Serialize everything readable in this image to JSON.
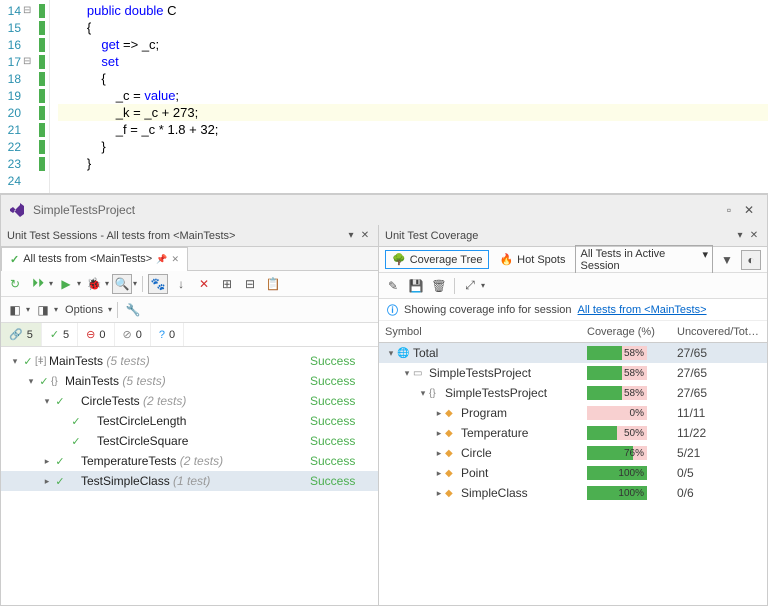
{
  "editor": {
    "lines": [
      {
        "num": 14,
        "fold": "⊟",
        "mark": true,
        "tokens": [
          {
            "t": "        ",
            "c": ""
          },
          {
            "t": "public",
            "c": "kw"
          },
          {
            "t": " ",
            "c": ""
          },
          {
            "t": "double",
            "c": "kw"
          },
          {
            "t": " C",
            "c": "txt"
          }
        ]
      },
      {
        "num": 15,
        "fold": "",
        "mark": true,
        "tokens": [
          {
            "t": "        {",
            "c": "txt"
          }
        ]
      },
      {
        "num": 16,
        "fold": "",
        "mark": true,
        "tokens": [
          {
            "t": "            ",
            "c": ""
          },
          {
            "t": "get",
            "c": "kw"
          },
          {
            "t": " => _c;",
            "c": "txt"
          }
        ]
      },
      {
        "num": 17,
        "fold": "⊟",
        "mark": true,
        "tokens": [
          {
            "t": "            ",
            "c": ""
          },
          {
            "t": "set",
            "c": "kw"
          }
        ]
      },
      {
        "num": 18,
        "fold": "",
        "mark": true,
        "tokens": [
          {
            "t": "            {",
            "c": "txt"
          }
        ]
      },
      {
        "num": 19,
        "fold": "",
        "mark": true,
        "tokens": [
          {
            "t": "                _c = ",
            "c": "txt"
          },
          {
            "t": "value",
            "c": "kw"
          },
          {
            "t": ";",
            "c": "txt"
          }
        ]
      },
      {
        "num": 20,
        "fold": "",
        "mark": true,
        "hl": true,
        "tokens": [
          {
            "t": "                _k = _c + 273;",
            "c": "txt"
          }
        ]
      },
      {
        "num": 21,
        "fold": "",
        "mark": true,
        "tokens": [
          {
            "t": "                _f = _c * 1.8 + 32;",
            "c": "txt"
          }
        ]
      },
      {
        "num": 22,
        "fold": "",
        "mark": true,
        "tokens": [
          {
            "t": "            }",
            "c": "txt"
          }
        ]
      },
      {
        "num": 23,
        "fold": "",
        "mark": true,
        "tokens": [
          {
            "t": "        }",
            "c": "txt"
          }
        ]
      },
      {
        "num": 24,
        "fold": "",
        "mark": false,
        "tokens": [
          {
            "t": "",
            "c": ""
          }
        ]
      }
    ]
  },
  "window": {
    "title": "SimpleTestsProject"
  },
  "leftPanel": {
    "header": "Unit Test Sessions - All tests from <MainTests>",
    "tab": "All tests from <MainTests>",
    "options": "Options",
    "stats": {
      "total": "5",
      "passed": "5",
      "failed": "0",
      "ignored": "0",
      "unknown": "0"
    },
    "tree": [
      {
        "depth": 0,
        "exp": "▾",
        "ic": "✓",
        "kind": "[ǂ]",
        "label": "MainTests",
        "muted": "(5 tests)",
        "status": "Success"
      },
      {
        "depth": 1,
        "exp": "▾",
        "ic": "✓",
        "kind": "{}",
        "label": "MainTests",
        "muted": "(5 tests)",
        "status": "Success"
      },
      {
        "depth": 2,
        "exp": "▾",
        "ic": "✓",
        "kind": "",
        "label": "CircleTests",
        "muted": "(2 tests)",
        "status": "Success"
      },
      {
        "depth": 3,
        "exp": "",
        "ic": "✓",
        "kind": "",
        "label": "TestCircleLength",
        "muted": "",
        "status": "Success"
      },
      {
        "depth": 3,
        "exp": "",
        "ic": "✓",
        "kind": "",
        "label": "TestCircleSquare",
        "muted": "",
        "status": "Success"
      },
      {
        "depth": 2,
        "exp": "▸",
        "ic": "✓",
        "kind": "",
        "label": "TemperatureTests",
        "muted": "(2 tests)",
        "status": "Success"
      },
      {
        "depth": 2,
        "exp": "▸",
        "ic": "✓",
        "kind": "",
        "label": "TestSimpleClass",
        "muted": "(1 test)",
        "status": "Success",
        "sel": true
      }
    ]
  },
  "rightPanel": {
    "header": "Unit Test Coverage",
    "coverageTree": "Coverage Tree",
    "hotSpots": "Hot Spots",
    "dropdown": "All Tests in Active Session",
    "info": "Showing coverage info for session",
    "infoLink": "All tests from <MainTests>",
    "cols": {
      "sym": "Symbol",
      "pct": "Coverage (%)",
      "unc": "Uncovered/Tot…"
    },
    "tree": [
      {
        "depth": 0,
        "exp": "▾",
        "ic": "🌐",
        "label": "Total",
        "pct": 58,
        "unc": "27/65",
        "sel": true
      },
      {
        "depth": 1,
        "exp": "▾",
        "ic": "▭",
        "label": "SimpleTestsProject",
        "pct": 58,
        "unc": "27/65"
      },
      {
        "depth": 2,
        "exp": "▾",
        "ic": "{}",
        "label": "SimpleTestsProject",
        "pct": 58,
        "unc": "27/65"
      },
      {
        "depth": 3,
        "exp": "▸",
        "ic": "cls",
        "label": "Program",
        "pct": 0,
        "unc": "11/11"
      },
      {
        "depth": 3,
        "exp": "▸",
        "ic": "cls",
        "label": "Temperature",
        "pct": 50,
        "unc": "11/22"
      },
      {
        "depth": 3,
        "exp": "▸",
        "ic": "cls",
        "label": "Circle",
        "pct": 76,
        "unc": "5/21"
      },
      {
        "depth": 3,
        "exp": "▸",
        "ic": "cls",
        "label": "Point",
        "pct": 100,
        "unc": "0/5"
      },
      {
        "depth": 3,
        "exp": "▸",
        "ic": "cls",
        "label": "SimpleClass",
        "pct": 100,
        "unc": "0/6"
      }
    ]
  }
}
